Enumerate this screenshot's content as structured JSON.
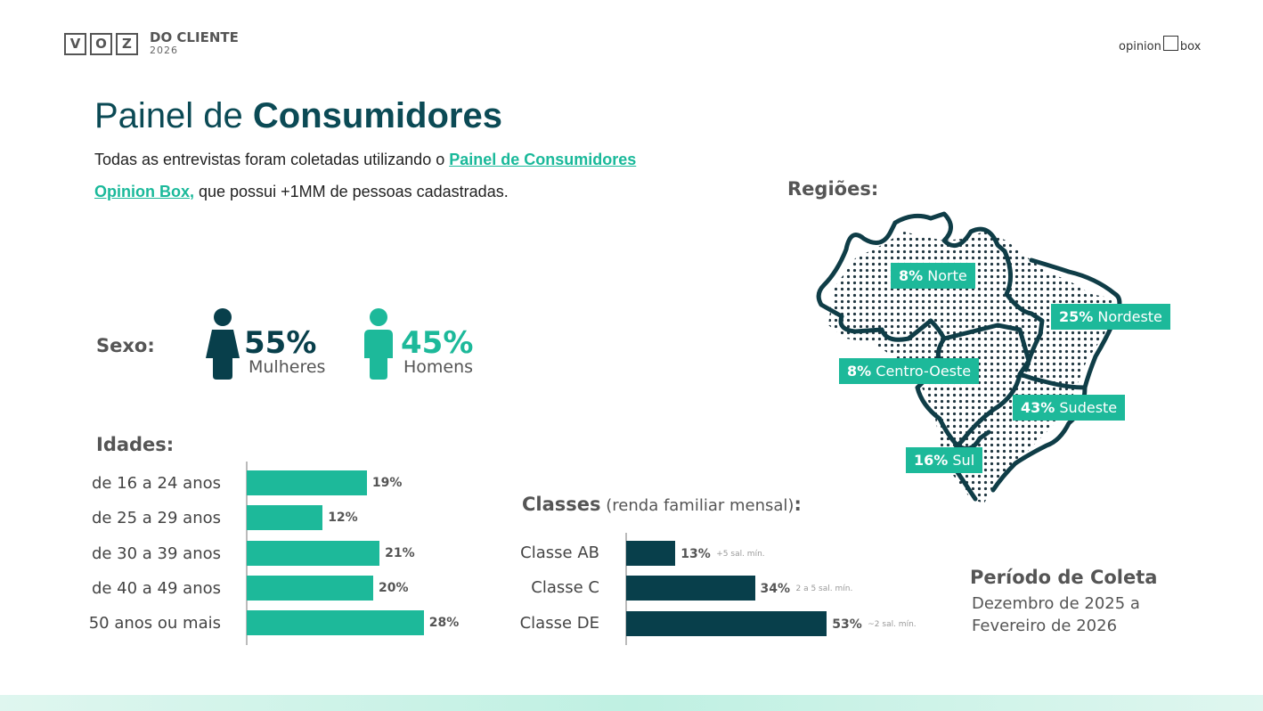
{
  "header": {
    "logo_letters": [
      "V",
      "O",
      "Z"
    ],
    "logo_title": "DO CLIENTE",
    "logo_year": "2026",
    "brand_left": "opinion",
    "brand_right": "box"
  },
  "title": {
    "light": "Painel de ",
    "bold": "Consumidores"
  },
  "intro": {
    "prefix": "Todas as entrevistas foram coletadas utilizando o ",
    "link_line1": "Painel de Consumidores",
    "link_line2": "Opinion Box,",
    "suffix": " que possui +1MM de pessoas cadastradas."
  },
  "sexo": {
    "label": "Sexo:",
    "female": {
      "pct": "55%",
      "label": "Mulheres",
      "value": 55,
      "color": "#083f4b",
      "icon": "woman-icon"
    },
    "male": {
      "pct": "45%",
      "label": "Homens",
      "value": 45,
      "color": "#1db99a",
      "icon": "man-icon"
    }
  },
  "idades": {
    "label": "Idades:",
    "color": "#1db99a",
    "items": [
      {
        "label": "de 16 a 24 anos",
        "value": 19,
        "display": "19%"
      },
      {
        "label": "de 25 a 29 anos",
        "value": 12,
        "display": "12%"
      },
      {
        "label": "de 30 a 39 anos",
        "value": 21,
        "display": "21%"
      },
      {
        "label": "de 40 a 49 anos",
        "value": 20,
        "display": "20%"
      },
      {
        "label": "50 anos ou mais",
        "value": 28,
        "display": "28%"
      }
    ]
  },
  "classes": {
    "label_bold": "Classes",
    "label_light": " (renda familiar mensal)",
    "label_colon": ":",
    "color": "#083f4b",
    "items": [
      {
        "label": "Classe AB",
        "value": 13,
        "display": "13%",
        "note": "+5 sal. mín."
      },
      {
        "label": "Classe C",
        "value": 34,
        "display": "34%",
        "note": "2 a 5 sal. mín."
      },
      {
        "label": "Classe DE",
        "value": 53,
        "display": "53%",
        "note": "~2 sal. mín."
      }
    ]
  },
  "regioes": {
    "label": "Regiões:",
    "items": [
      {
        "pct": "8%",
        "name": "Norte"
      },
      {
        "pct": "25%",
        "name": "Nordeste"
      },
      {
        "pct": "8%",
        "name": "Centro-Oeste"
      },
      {
        "pct": "43%",
        "name": "Sudeste"
      },
      {
        "pct": "16%",
        "name": "Sul"
      }
    ]
  },
  "periodo": {
    "title": "Período de Coleta",
    "line1": "Dezembro de 2025 a",
    "line2": "Fevereiro de 2026"
  },
  "colors": {
    "teal": "#1db99a",
    "dark": "#083f4b",
    "title": "#0b4a55"
  }
}
